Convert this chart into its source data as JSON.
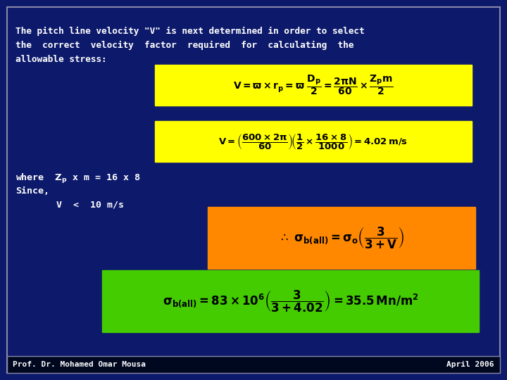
{
  "bg_color": "#0d1a6b",
  "border_color": "#8888aa",
  "text_color": "#ffffff",
  "eq1_bg": "#ffff00",
  "eq2_bg": "#ffff00",
  "eq3_bg": "#ff8800",
  "eq4_bg": "#44cc00",
  "footer_bg": "#000820",
  "footer_left": "Prof. Dr. Mohamed Omar Mousa",
  "footer_right": "April 2006",
  "title_lines": [
    "The pitch line velocity \"V\" is next determined in order to select",
    "the  correct  velocity  factor  required  for  calculating  the",
    "allowable stress:"
  ]
}
